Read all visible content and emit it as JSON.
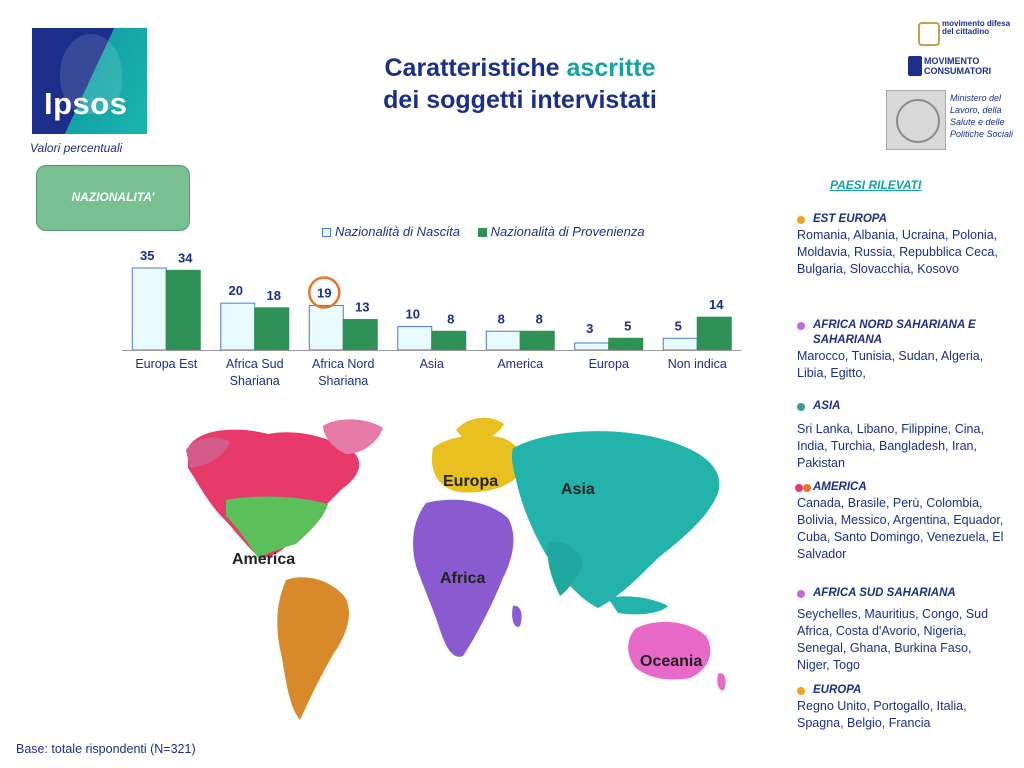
{
  "header": {
    "title_line1_a": "Caratteristiche ",
    "title_line1_b": "ascritte",
    "title_line2": "dei soggetti intervistati",
    "logo_text": "Ipsos",
    "subtitle": "Valori percentuali"
  },
  "partners": {
    "mdc": "movimento difesa del cittadino",
    "mc": "MOVIMENTO CONSUMATORI",
    "ministero": "Ministero del Lavoro, della Salute e delle Politiche Sociali"
  },
  "section_box": "NAZIONALITA’",
  "colors": {
    "nascita_fill": "#e9fbff",
    "nascita_stroke": "#4a7ad8",
    "provenienza": "#2e9155",
    "title": "#1b2f8a",
    "accent": "#13a2a6",
    "highlight": "#e8752a"
  },
  "chart_data": {
    "type": "bar",
    "categories": [
      "Europa Est",
      "Africa Sud Shariana",
      "Africa Nord Shariana",
      "Asia",
      "America",
      "Europa",
      "Non indica"
    ],
    "series": [
      {
        "name": "Nazionalità di Nascita",
        "values": [
          35,
          20,
          19,
          10,
          8,
          3,
          5
        ]
      },
      {
        "name": "Nazionalità di Provenienza",
        "values": [
          34,
          18,
          13,
          8,
          8,
          5,
          14
        ]
      }
    ],
    "legend_position": "top",
    "highlighted": {
      "category": "Africa Nord Shariana",
      "series": "Nazionalità di Nascita"
    },
    "ylim": [
      0,
      35
    ],
    "grid": false
  },
  "map": {
    "labels": [
      "Europa",
      "Asia",
      "America",
      "Africa",
      "Oceania"
    ]
  },
  "paesi": {
    "title": "PAESI RILEVATI",
    "regions": [
      {
        "name": "EST EUROPA",
        "color": "#f4a020",
        "countries": "Romania, Albania, Ucraina, Polonia, Moldavia, Russia, Repubblica Ceca, Bulgaria, Slovacchia, Kosovo"
      },
      {
        "name": "AFRICA NORD SAHARIANA E SAHARIANA",
        "color": "#cc66e0",
        "countries": "Marocco, Tunisia, Sudan, Algeria, Libia, Egitto,"
      },
      {
        "name": "ASIA",
        "color": "#3a9a94",
        "countries": "Sri Lanka, Libano, Filippine, Cina, India, Turchia, Bangladesh, Iran, Pakistan"
      },
      {
        "name": "AMERICA",
        "color": "#e83a6a",
        "color2": "#e8752a",
        "countries": "Canada, Brasile, Perù, Colombia, Bolivia, Messico, Argentina, Equador, Cuba, Santo Domingo, Venezuela, El Salvador"
      },
      {
        "name": "AFRICA SUD SAHARIANA",
        "color": "#cc66e0",
        "countries": "Seychelles, Mauritius, Congo, Sud Africa, Costa d'Avorio, Nigeria, Senegal, Ghana, Burkina Faso, Niger, Togo"
      },
      {
        "name": "EUROPA",
        "color": "#f4a020",
        "countries": "Regno Unito, Portogallo, Italia, Spagna, Belgio, Francia"
      }
    ]
  },
  "footer": {
    "base": "Base: totale rispondenti (N=321)"
  }
}
